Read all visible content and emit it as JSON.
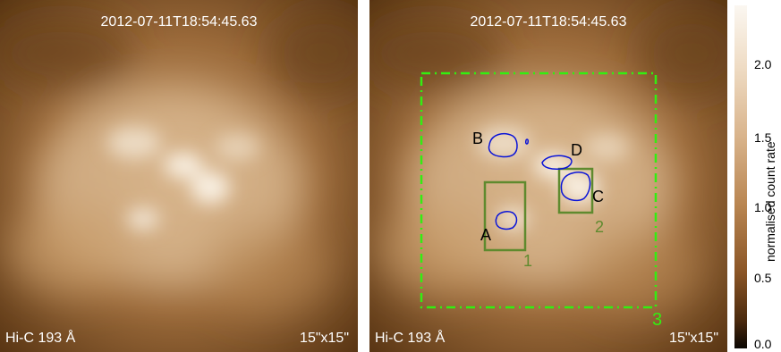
{
  "left_panel": {
    "timestamp": "2012-07-11T18:54:45.63",
    "instrument": "Hi-C 193 Å",
    "fov": "15\"x15\""
  },
  "right_panel": {
    "timestamp": "2012-07-11T18:54:45.63",
    "instrument": "Hi-C 193 Å",
    "fov": "15\"x15\"",
    "region_labels": {
      "a": "A",
      "b": "B",
      "c": "C",
      "d": "D"
    },
    "box_labels": {
      "one": "1",
      "two": "2",
      "three": "3"
    }
  },
  "colorbar": {
    "label": "normalised count rate",
    "ticks": [
      "2.0",
      "1.5",
      "1.0",
      "0.5",
      "0.0"
    ]
  },
  "colors": {
    "box": "#5f8a2e",
    "dashed_box": "#33ee11",
    "contour": "#0a14d8",
    "text": "#ffffff"
  }
}
